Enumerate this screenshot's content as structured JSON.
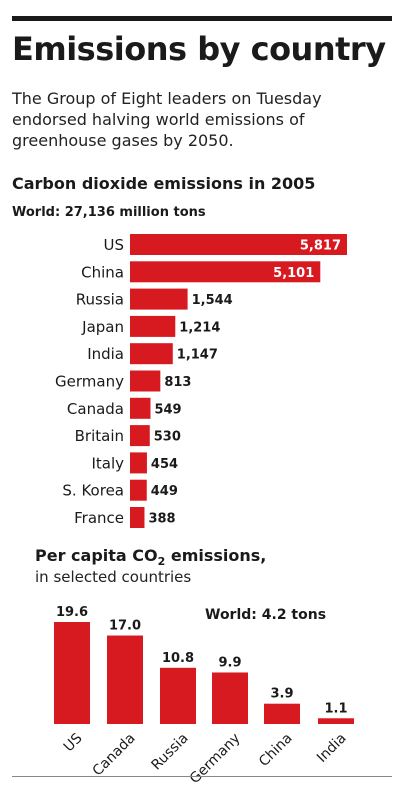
{
  "header": {
    "title": "Emissions by country",
    "lede": "The Group of Eight leaders on Tuesday endorsed halving world emissions of greenhouse gases by 2050."
  },
  "colors": {
    "bar": "#d71920",
    "text": "#1a1a1a",
    "on_bar_text": "#ffffff"
  },
  "chart_data": [
    {
      "type": "bar",
      "orientation": "horizontal",
      "title": "Carbon dioxide emissions in 2005",
      "subtitle": "World: 27,136 million tons",
      "categories": [
        "US",
        "China",
        "Russia",
        "Japan",
        "India",
        "Germany",
        "Canada",
        "Britain",
        "Italy",
        "S. Korea",
        "France"
      ],
      "values": [
        5817,
        5101,
        1544,
        1214,
        1147,
        813,
        549,
        530,
        454,
        449,
        388
      ],
      "value_labels": [
        "5,817",
        "5,101",
        "1,544",
        "1,214",
        "1,147",
        "813",
        "549",
        "530",
        "454",
        "449",
        "388"
      ],
      "xlim": [
        0,
        5817
      ],
      "grid": false,
      "legend": "none"
    },
    {
      "type": "bar",
      "orientation": "vertical",
      "title_main": "Per capita CO",
      "title_sub": "2",
      "title_tail": " emissions,",
      "subtitle": "in selected countries",
      "annotation": "World: 4.2 tons",
      "categories": [
        "US",
        "Canada",
        "Russia",
        "Germany",
        "China",
        "India"
      ],
      "values": [
        19.6,
        17.0,
        10.8,
        9.9,
        3.9,
        1.1
      ],
      "value_labels": [
        "19.6",
        "17.0",
        "10.8",
        "9.9",
        "3.9",
        "1.1"
      ],
      "ylim": [
        0,
        19.6
      ],
      "grid": false,
      "legend": "none"
    }
  ]
}
